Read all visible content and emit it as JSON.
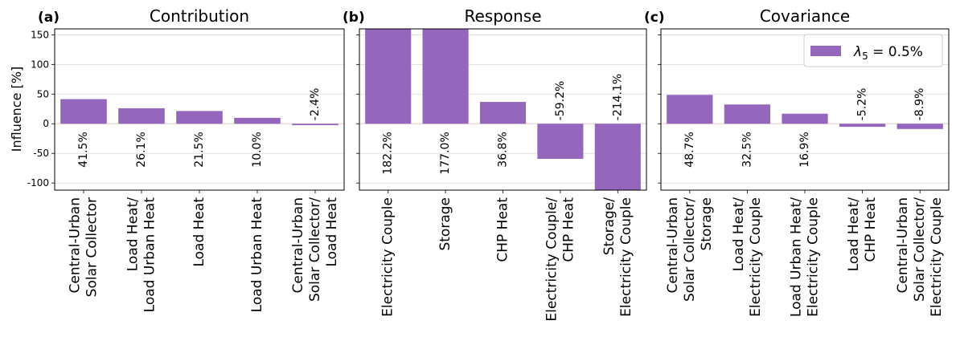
{
  "ylabel": "Influence [%]",
  "bar_color": "#9467bd",
  "grid_color": "#d9d9d9",
  "chart_data": [
    {
      "type": "bar",
      "panel_label": "(a)",
      "title": "Contribution",
      "categories": [
        "Central-Urban\nSolar Collector",
        "Load Heat/\nLoad Urban Heat",
        "Load Heat",
        "Load Urban Heat",
        "Central-Urban\nSolar Collector/\nLoad Heat"
      ],
      "values": [
        41.5,
        26.1,
        21.5,
        10.0,
        -2.4
      ],
      "value_labels": [
        "41.5%",
        "26.1%",
        "21.5%",
        "10.0%",
        "-2.4%"
      ],
      "ylim": [
        -112,
        160
      ],
      "yticks": [
        -100,
        -50,
        0,
        50,
        100,
        150
      ],
      "grid": true
    },
    {
      "type": "bar",
      "panel_label": "(b)",
      "title": "Response",
      "categories": [
        "Electricity Couple",
        "Storage",
        "CHP Heat",
        "Electricity Couple/\nCHP Heat",
        "Storage/\nElectricity Couple"
      ],
      "values": [
        182.2,
        177.0,
        36.8,
        -59.2,
        -214.1
      ],
      "value_labels": [
        "182.2%",
        "177.0%",
        "36.8%",
        "-59.2%",
        "-214.1%"
      ],
      "ylim": [
        -112,
        160
      ],
      "yticks": [
        -100,
        -50,
        0,
        50,
        100,
        150
      ],
      "grid": true
    },
    {
      "type": "bar",
      "panel_label": "(c)",
      "title": "Covariance",
      "categories": [
        "Central-Urban\nSolar Collector/\nStorage",
        "Load Heat/\nElectricity Couple",
        "Load Urban Heat/\nElectricity Couple",
        "Load Heat/\nCHP Heat",
        "Central-Urban\nSolar Collector/\nElectricity Couple"
      ],
      "values": [
        48.7,
        32.5,
        16.9,
        -5.2,
        -8.9
      ],
      "value_labels": [
        "48.7%",
        "32.5%",
        "16.9%",
        "-5.2%",
        "-8.9%"
      ],
      "ylim": [
        -112,
        160
      ],
      "yticks": [
        -100,
        -50,
        0,
        50,
        100,
        150
      ],
      "grid": true,
      "legend": {
        "position": "top-right",
        "lambda_sub": "5",
        "text": " = 0.5%"
      }
    }
  ]
}
